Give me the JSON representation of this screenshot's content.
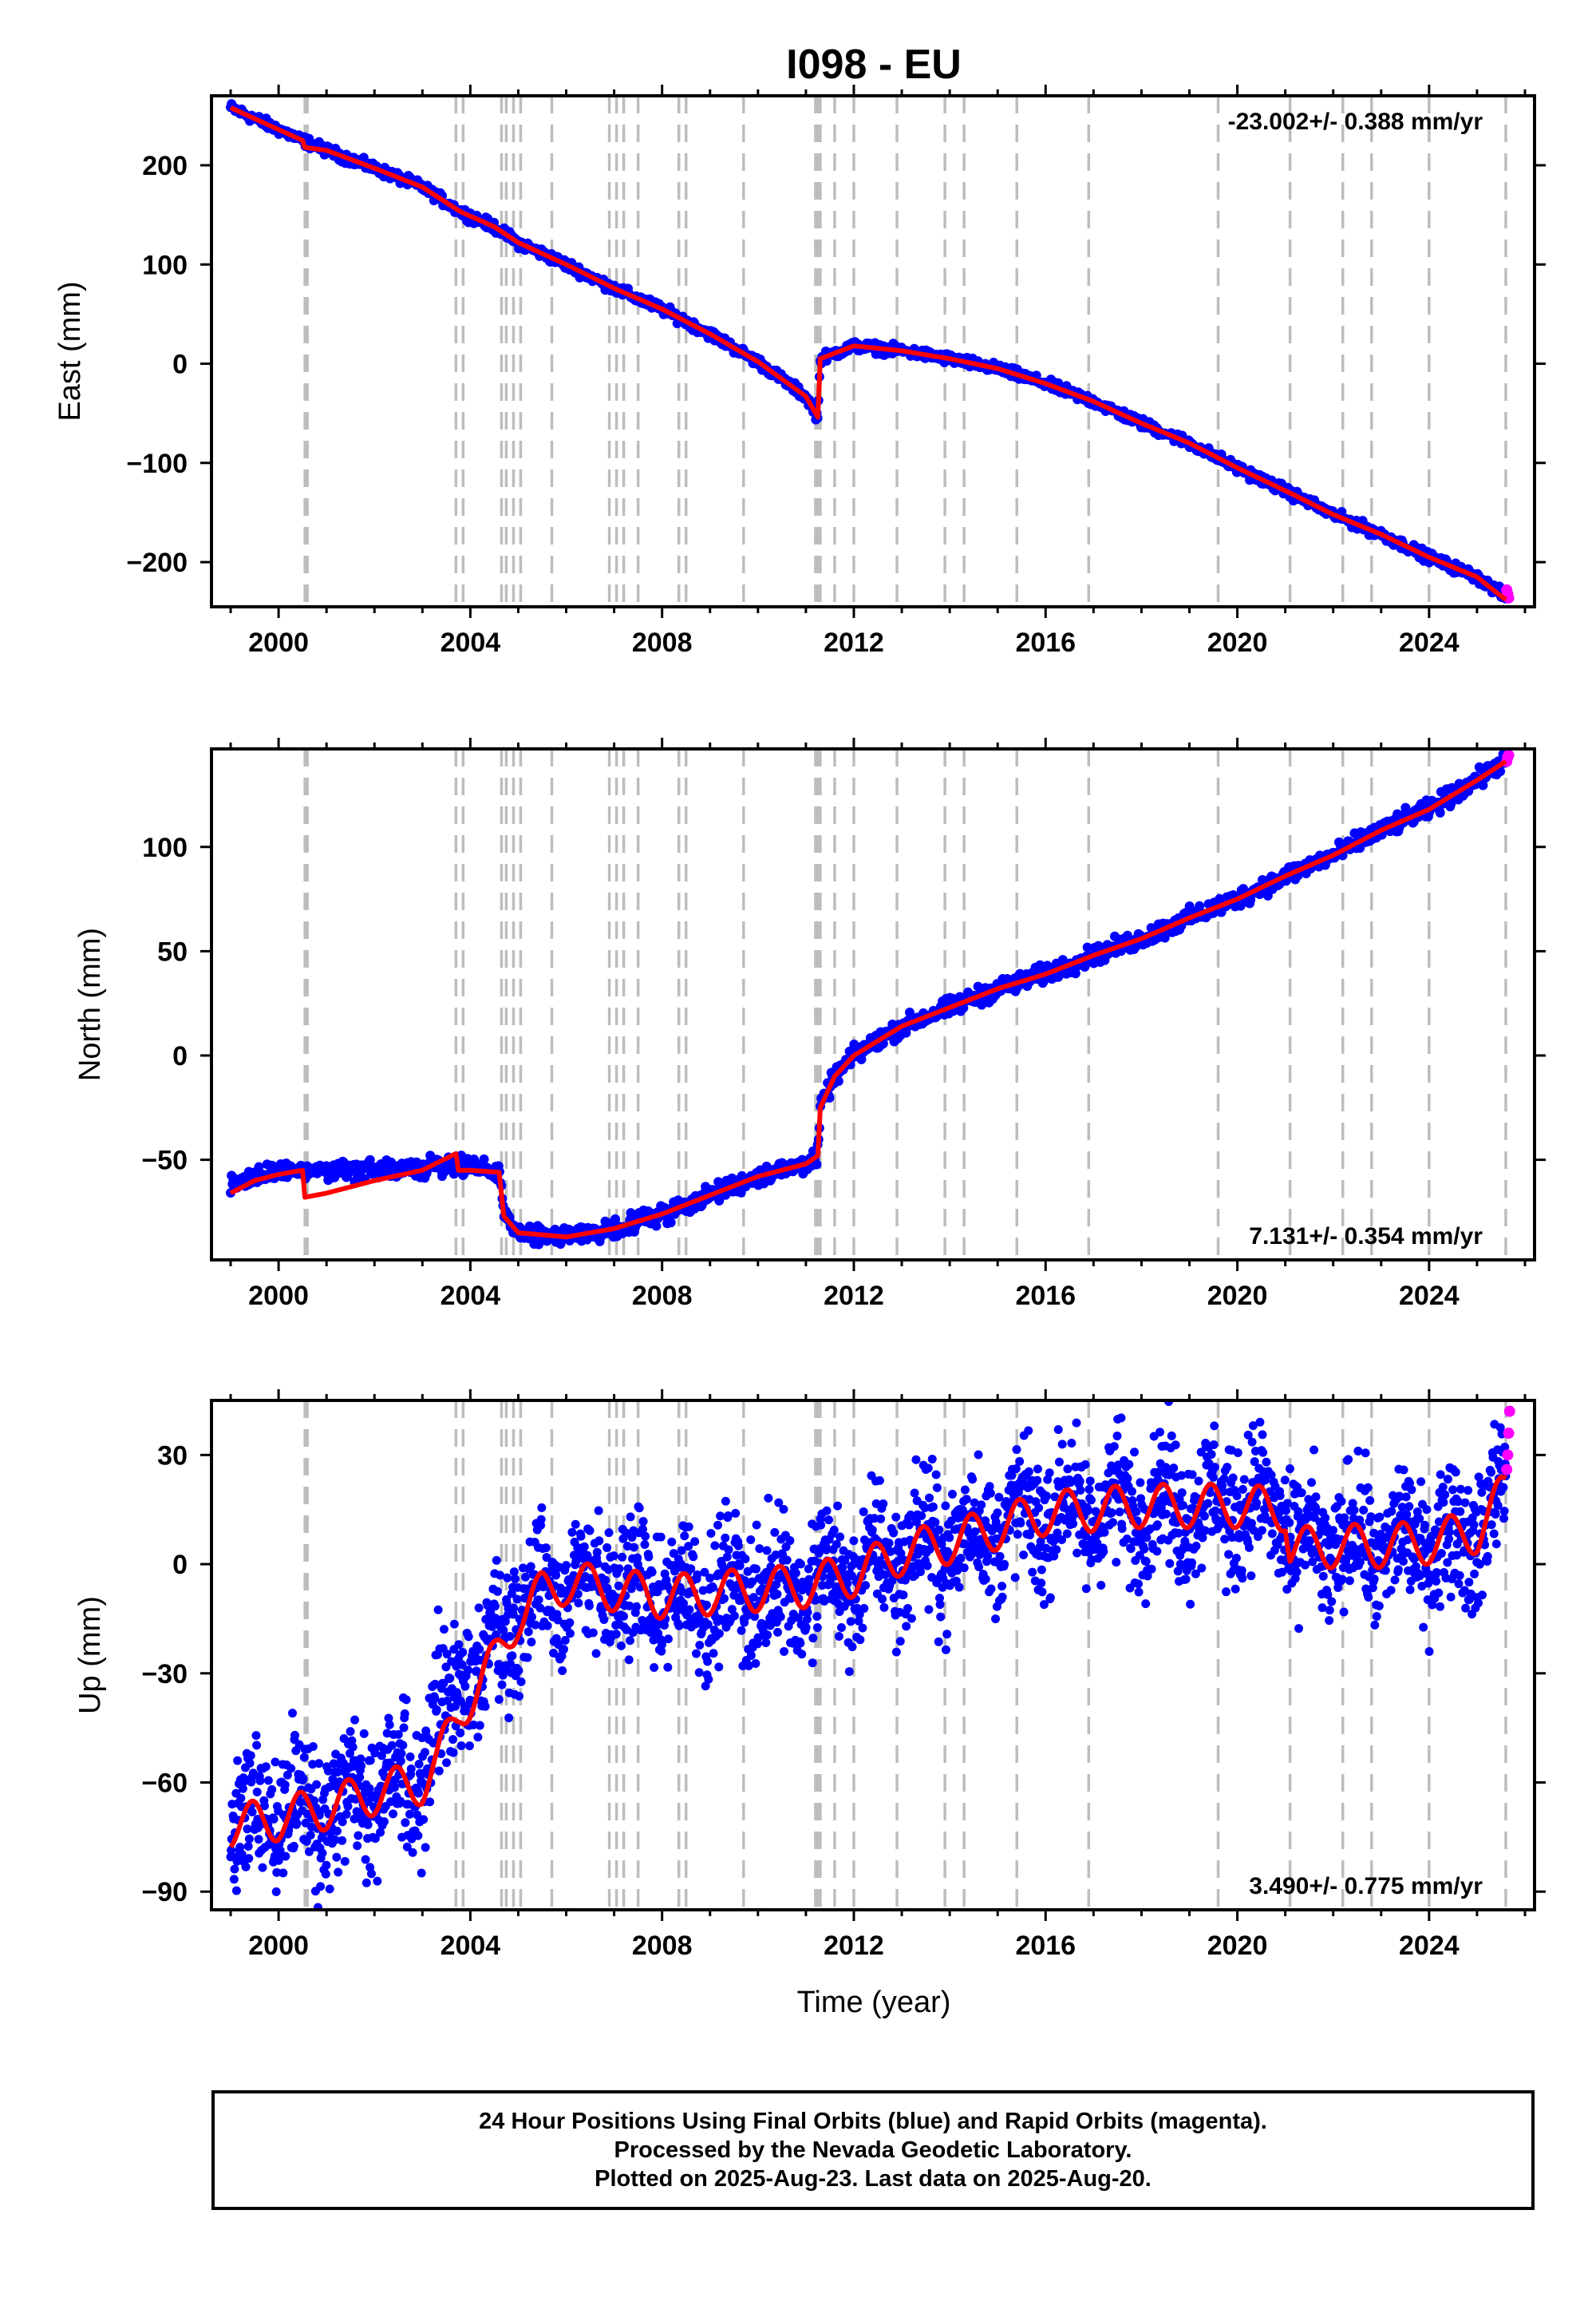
{
  "title": "I098 - EU",
  "xlabel": "Time (year)",
  "colors": {
    "final_orbits": "#0000ff",
    "rapid_orbits": "#ff00ff",
    "model": "#ff0000",
    "event_lines": "#bdbdbd"
  },
  "chart_data": [
    {
      "type": "scatter",
      "component": "East",
      "ylabel": "East (mm)",
      "rate_label": "-23.002+/- 0.388 mm/yr",
      "rate_position": "top-right",
      "xlim": [
        1998.6,
        2026.2
      ],
      "ylim": [
        -245,
        270
      ],
      "xticks": [
        2000,
        2004,
        2008,
        2012,
        2016,
        2020,
        2024
      ],
      "yticks": [
        -200,
        -100,
        0,
        100,
        200
      ],
      "grid": false,
      "series": [
        {
          "name": "Final Orbits",
          "color": "blue",
          "x": [
            1999.0,
            2000.0,
            2000.5,
            2001.0,
            2002.0,
            2003.0,
            2003.8,
            2004.5,
            2005.0,
            2006.0,
            2007.0,
            2008.0,
            2009.0,
            2010.0,
            2011.0,
            2011.25,
            2011.3,
            2012.0,
            2013.0,
            2014.0,
            2015.0,
            2016.0,
            2017.0,
            2018.0,
            2019.0,
            2020.0,
            2021.0,
            2022.0,
            2023.0,
            2024.0,
            2025.0,
            2025.6
          ],
          "y": [
            258,
            236,
            225,
            215,
            197,
            178,
            153,
            138,
            122,
            100,
            76,
            55,
            30,
            2,
            -33,
            -54,
            5,
            18,
            13,
            5,
            -5,
            -20,
            -38,
            -60,
            -80,
            -105,
            -128,
            -152,
            -172,
            -195,
            -215,
            -235
          ]
        },
        {
          "name": "Rapid Orbits",
          "color": "magenta",
          "x": [
            2025.62,
            2025.64,
            2025.66
          ],
          "y": [
            -228,
            -232,
            -236
          ]
        },
        {
          "name": "Model",
          "color": "red",
          "x": [
            1999.0,
            2000.0,
            2000.5,
            2000.55,
            2001.0,
            2002.0,
            2003.0,
            2003.8,
            2004.5,
            2005.0,
            2006.0,
            2007.0,
            2008.0,
            2009.0,
            2010.0,
            2011.0,
            2011.25,
            2011.3,
            2012.0,
            2013.0,
            2014.0,
            2015.0,
            2016.0,
            2017.0,
            2018.0,
            2019.0,
            2020.0,
            2021.0,
            2022.0,
            2023.0,
            2024.0,
            2025.0,
            2025.6
          ],
          "y": [
            258,
            236,
            225,
            218,
            215,
            197,
            178,
            153,
            138,
            122,
            100,
            76,
            55,
            30,
            2,
            -33,
            -54,
            5,
            18,
            13,
            5,
            -5,
            -20,
            -38,
            -60,
            -80,
            -105,
            -128,
            -152,
            -172,
            -195,
            -215,
            -238
          ]
        }
      ]
    },
    {
      "type": "scatter",
      "component": "North",
      "ylabel": "North (mm)",
      "rate_label": "7.131+/- 0.354 mm/yr",
      "rate_position": "bottom-right",
      "xlim": [
        1998.6,
        2026.2
      ],
      "ylim": [
        -98,
        147
      ],
      "xticks": [
        2000,
        2004,
        2008,
        2012,
        2016,
        2020,
        2024
      ],
      "yticks": [
        -50,
        0,
        50,
        100
      ],
      "grid": false,
      "series": [
        {
          "name": "Final Orbits",
          "color": "blue",
          "x": [
            1999.0,
            1999.5,
            2000.0,
            2000.5,
            2001.0,
            2002.0,
            2003.0,
            2003.7,
            2004.0,
            2004.6,
            2004.7,
            2005.0,
            2006.0,
            2007.0,
            2008.0,
            2009.0,
            2010.0,
            2011.0,
            2011.25,
            2011.3,
            2011.6,
            2012.0,
            2013.0,
            2014.0,
            2015.0,
            2016.0,
            2017.0,
            2018.0,
            2019.0,
            2020.0,
            2021.0,
            2022.0,
            2023.0,
            2024.0,
            2025.0,
            2025.6
          ],
          "y": [
            -63,
            -58,
            -55,
            -55,
            -55,
            -55,
            -54,
            -52,
            -53,
            -56,
            -77,
            -85,
            -87,
            -83,
            -76,
            -67,
            -58,
            -52,
            -48,
            -25,
            -10,
            0,
            14,
            23,
            32,
            39,
            48,
            56,
            66,
            75,
            86,
            96,
            108,
            118,
            132,
            142
          ]
        },
        {
          "name": "Rapid Orbits",
          "color": "magenta",
          "x": [
            2025.62,
            2025.64,
            2025.66
          ],
          "y": [
            141,
            143,
            144
          ]
        },
        {
          "name": "Model",
          "color": "red",
          "x": [
            1999.0,
            1999.5,
            2000.0,
            2000.5,
            2000.55,
            2001.0,
            2002.0,
            2003.0,
            2003.7,
            2003.75,
            2004.0,
            2004.6,
            2004.7,
            2005.0,
            2006.0,
            2007.0,
            2008.0,
            2009.0,
            2010.0,
            2011.0,
            2011.25,
            2011.3,
            2011.6,
            2012.0,
            2013.0,
            2014.0,
            2015.0,
            2016.0,
            2017.0,
            2018.0,
            2019.0,
            2020.0,
            2021.0,
            2022.0,
            2023.0,
            2024.0,
            2025.0,
            2025.6
          ],
          "y": [
            -66,
            -60,
            -57,
            -55,
            -68,
            -66,
            -60,
            -55,
            -47,
            -55,
            -55,
            -56,
            -77,
            -85,
            -87,
            -83,
            -76,
            -67,
            -58,
            -52,
            -48,
            -25,
            -10,
            0,
            14,
            23,
            32,
            39,
            48,
            56,
            66,
            75,
            86,
            96,
            108,
            118,
            132,
            141
          ]
        }
      ]
    },
    {
      "type": "scatter",
      "component": "Up",
      "ylabel": "Up (mm)",
      "rate_label": "3.490+/- 0.775 mm/yr",
      "rate_position": "bottom-right",
      "xlim": [
        1998.6,
        2026.2
      ],
      "ylim": [
        -95,
        45
      ],
      "xticks": [
        2000,
        2004,
        2008,
        2012,
        2016,
        2020,
        2024
      ],
      "yticks": [
        -90,
        -60,
        -30,
        0,
        30
      ],
      "grid": false,
      "series": [
        {
          "name": "Final Orbits",
          "color": "blue",
          "x": [
            1999.0,
            2000.0,
            2001.0,
            2002.0,
            2003.0,
            2003.3,
            2003.8,
            2004.5,
            2005.0,
            2005.5,
            2006.0,
            2007.0,
            2008.0,
            2009.0,
            2010.0,
            2011.0,
            2012.0,
            2013.0,
            2014.0,
            2015.0,
            2016.0,
            2017.0,
            2018.0,
            2019.0,
            2020.0,
            2021.0,
            2021.1,
            2022.0,
            2023.0,
            2024.0,
            2025.0,
            2025.6
          ],
          "y": [
            -72,
            -70,
            -67,
            -63,
            -60,
            -40,
            -35,
            -22,
            -12,
            -8,
            -5,
            -7,
            -9,
            -8,
            -7,
            -6,
            -3,
            3,
            6,
            10,
            14,
            15,
            16,
            16,
            16,
            15,
            4,
            5,
            5,
            6,
            9,
            22
          ]
        },
        {
          "name": "Rapid Orbits",
          "color": "magenta",
          "x": [
            2025.62,
            2025.64,
            2025.66,
            2025.68
          ],
          "y": [
            26,
            30,
            36,
            42
          ]
        },
        {
          "name": "Model",
          "color": "red",
          "x": [
            1999.0,
            2000.0,
            2001.0,
            2002.0,
            2003.0,
            2003.3,
            2003.8,
            2004.5,
            2005.0,
            2005.5,
            2006.0,
            2007.0,
            2008.0,
            2009.0,
            2010.0,
            2011.0,
            2012.0,
            2013.0,
            2014.0,
            2015.0,
            2016.0,
            2017.0,
            2018.0,
            2019.0,
            2020.0,
            2021.0,
            2021.1,
            2022.0,
            2023.0,
            2024.0,
            2025.0,
            2025.6
          ],
          "y": [
            -72,
            -70,
            -67,
            -63,
            -60,
            -55,
            -40,
            -27,
            -14,
            -8,
            -5,
            -7,
            -9,
            -8,
            -7,
            -6,
            -3,
            3,
            6,
            10,
            14,
            15,
            16,
            16,
            16,
            15,
            4,
            5,
            5,
            6,
            9,
            20
          ]
        }
      ]
    }
  ],
  "event_lines": [
    2000.55,
    2000.6,
    2003.7,
    2003.85,
    2004.65,
    2004.75,
    2004.9,
    2005.05,
    2005.7,
    2006.9,
    2007.05,
    2007.2,
    2007.5,
    2008.35,
    2008.5,
    2009.7,
    2011.2,
    2011.25,
    2011.3,
    2011.6,
    2012.0,
    2012.9,
    2013.9,
    2014.3,
    2015.4,
    2016.9,
    2019.6,
    2021.1,
    2022.2,
    2022.8,
    2024.0,
    2025.6
  ],
  "caption": {
    "line1": "24 Hour Positions Using Final Orbits (blue) and Rapid Orbits (magenta).",
    "line2": "Processed by the Nevada Geodetic Laboratory.",
    "line3": "Plotted on 2025-Aug-23. Last data on 2025-Aug-20."
  }
}
